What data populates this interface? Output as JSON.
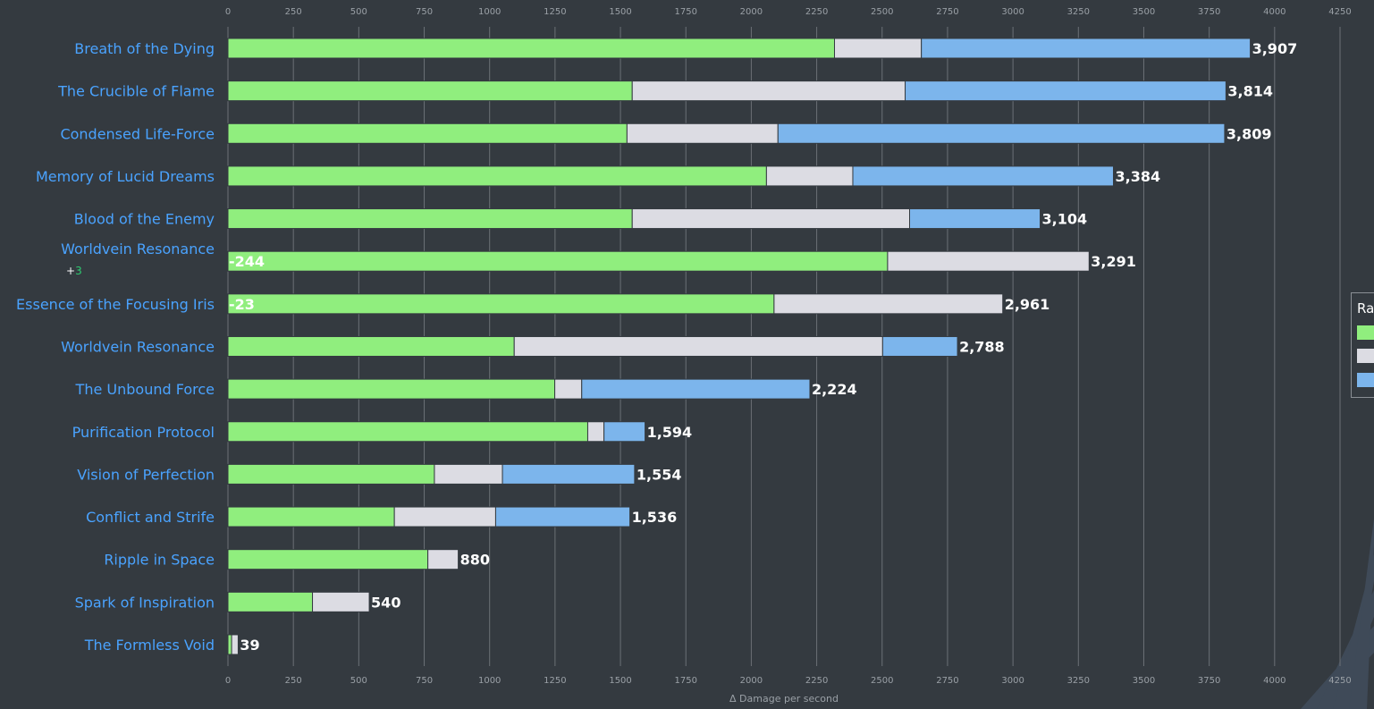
{
  "chart_data": {
    "type": "bar",
    "orientation": "horizontal",
    "stacked": true,
    "xlabel": "Δ Damage per second",
    "xlim": [
      0,
      4250
    ],
    "xticks": [
      0,
      250,
      500,
      750,
      1000,
      1250,
      1500,
      1750,
      2000,
      2250,
      2500,
      2750,
      3000,
      3250,
      3500,
      3750,
      4000,
      4250
    ],
    "grid": true,
    "legend": {
      "title": "Ra",
      "position": "right",
      "entries": [
        {
          "name": "",
          "color": "#90ee7e"
        },
        {
          "name": "",
          "color": "#dcdce3"
        },
        {
          "name": "",
          "color": "#7cb5ec"
        }
      ]
    },
    "series_colors": [
      "#90ee7e",
      "#dcdce3",
      "#7cb5ec"
    ],
    "categories": [
      {
        "label": "Breath of the Dying",
        "note": "",
        "segments": [
          2318,
          332,
          1257
        ],
        "total": "3,907",
        "neg": ""
      },
      {
        "label": "The Crucible of Flame",
        "note": "",
        "segments": [
          1545,
          1043,
          1226
        ],
        "total": "3,814",
        "neg": ""
      },
      {
        "label": "Condensed Life-Force",
        "note": "",
        "segments": [
          1525,
          577,
          1707
        ],
        "total": "3,809",
        "neg": ""
      },
      {
        "label": "Memory of Lucid Dreams",
        "note": "",
        "segments": [
          2058,
          330,
          996
        ],
        "total": "3,384",
        "neg": ""
      },
      {
        "label": "Blood of the Enemy",
        "note": "",
        "segments": [
          1545,
          1060,
          499
        ],
        "total": "3,104",
        "neg": ""
      },
      {
        "label": "Worldvein Resonance",
        "note": "+3",
        "segments": [
          2521,
          770,
          0
        ],
        "total": "3,291",
        "neg": "-244"
      },
      {
        "label": "Essence of the Focusing Iris",
        "note": "",
        "segments": [
          2087,
          874,
          0
        ],
        "total": "2,961",
        "neg": "-23"
      },
      {
        "label": "Worldvein Resonance",
        "note": "",
        "segments": [
          1094,
          1408,
          286
        ],
        "total": "2,788",
        "neg": ""
      },
      {
        "label": "The Unbound Force",
        "note": "",
        "segments": [
          1249,
          103,
          872
        ],
        "total": "2,224",
        "neg": ""
      },
      {
        "label": "Purification Protocol",
        "note": "",
        "segments": [
          1375,
          62,
          157
        ],
        "total": "1,594",
        "neg": ""
      },
      {
        "label": "Vision of Perfection",
        "note": "",
        "segments": [
          789,
          260,
          505
        ],
        "total": "1,554",
        "neg": ""
      },
      {
        "label": "Conflict and Strife",
        "note": "",
        "segments": [
          636,
          387,
          513
        ],
        "total": "1,536",
        "neg": ""
      },
      {
        "label": "Ripple in Space",
        "note": "",
        "segments": [
          764,
          116,
          0
        ],
        "total": "880",
        "neg": ""
      },
      {
        "label": "Spark of Inspiration",
        "note": "",
        "segments": [
          323,
          217,
          0
        ],
        "total": "540",
        "neg": ""
      },
      {
        "label": "The Formless Void",
        "note": "",
        "segments": [
          14,
          25,
          0
        ],
        "total": "39",
        "neg": ""
      }
    ]
  }
}
